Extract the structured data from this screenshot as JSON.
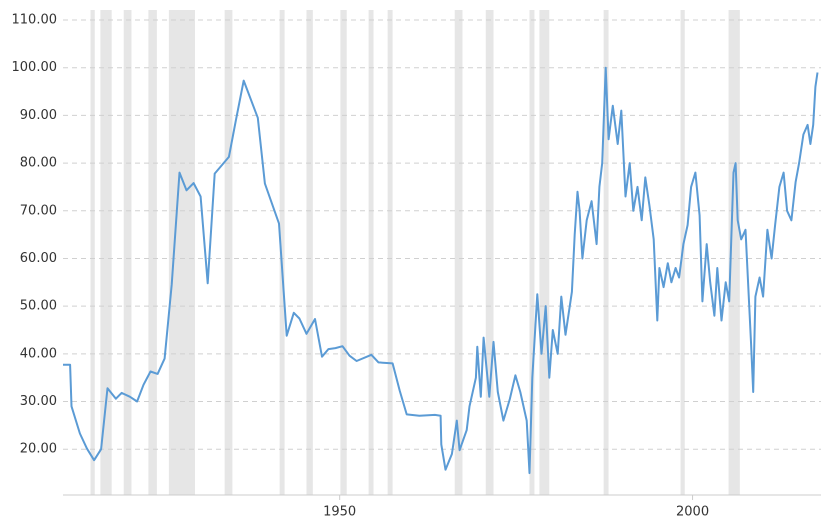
{
  "chart_data": {
    "type": "line",
    "xlim": [
      1910.8,
      2018.2
    ],
    "ylim": [
      10.4,
      110
    ],
    "xticks": [
      1950,
      2000
    ],
    "yticks": [
      {
        "value": 20,
        "label": "20.00"
      },
      {
        "value": 30,
        "label": "30.00"
      },
      {
        "value": 40,
        "label": "40.00"
      },
      {
        "value": 50,
        "label": "50.00"
      },
      {
        "value": 60,
        "label": "60.00"
      },
      {
        "value": 70,
        "label": "70.00"
      },
      {
        "value": 80,
        "label": "80.00"
      },
      {
        "value": 90,
        "label": "90.00"
      },
      {
        "value": 100,
        "label": "100.00"
      },
      {
        "value": 110,
        "label": "110.00"
      }
    ],
    "grid": true,
    "shaded_ranges": [
      [
        1914.7,
        1915.3
      ],
      [
        1916.1,
        1917.7
      ],
      [
        1919.4,
        1920.5
      ],
      [
        1922.9,
        1924.1
      ],
      [
        1925.8,
        1929.5
      ],
      [
        1933.7,
        1934.8
      ],
      [
        1941.5,
        1942.2
      ],
      [
        1945.3,
        1946.2
      ],
      [
        1950.1,
        1951.0
      ],
      [
        1954.1,
        1954.8
      ],
      [
        1956.8,
        1957.5
      ],
      [
        1966.3,
        1967.4
      ],
      [
        1970.7,
        1971.8
      ],
      [
        1976.9,
        1977.6
      ],
      [
        1978.3,
        1979.7
      ],
      [
        1987.4,
        1988.1
      ],
      [
        1998.3,
        1998.9
      ],
      [
        2005.1,
        2006.7
      ]
    ],
    "shade_color": "#e6e6e6",
    "series": [
      {
        "color": "#5b9bd5",
        "x": [
          1910.8,
          1911.8,
          1912.0,
          1913.2,
          1914.2,
          1915.2,
          1916.2,
          1917.1,
          1918.3,
          1919.1,
          1920.3,
          1921.3,
          1922.2,
          1923.2,
          1924.2,
          1925.2,
          1926.2,
          1927.3,
          1928.3,
          1929.3,
          1930.3,
          1931.3,
          1932.3,
          1934.3,
          1935.3,
          1936.4,
          1938.4,
          1939.4,
          1941.4,
          1942.5,
          1943.5,
          1944.3,
          1945.3,
          1946.5,
          1947.5,
          1948.4,
          1949.4,
          1950.4,
          1951.4,
          1952.4,
          1954.5,
          1955.5,
          1957.5,
          1958.5,
          1959.5,
          1961.3,
          1963.5,
          1964.3,
          1964.4,
          1965.0,
          1965.9,
          1966.6,
          1967.0,
          1968.0,
          1968.4,
          1969.3,
          1969.5,
          1970.0,
          1970.4,
          1971.2,
          1971.8,
          1972.4,
          1973.2,
          1974.1,
          1974.9,
          1975.6,
          1976.5,
          1976.9,
          1977.3,
          1978.0,
          1978.6,
          1979.2,
          1979.7,
          1980.2,
          1980.9,
          1981.4,
          1982.0,
          1982.9,
          1983.3,
          1983.7,
          1984.0,
          1984.4,
          1985.0,
          1985.7,
          1986.4,
          1986.8,
          1987.2,
          1987.7,
          1988.1,
          1988.7,
          1989.4,
          1989.9,
          1990.5,
          1991.1,
          1991.6,
          1992.2,
          1992.8,
          1993.3,
          1993.9,
          1994.5,
          1995.0,
          1995.3,
          1995.9,
          1996.5,
          1997.0,
          1997.6,
          1998.1,
          1998.7,
          1999.3,
          1999.8,
          2000.4,
          2001.0,
          2001.4,
          2002.0,
          2002.5,
          2003.1,
          2003.5,
          2004.1,
          2004.7,
          2005.2,
          2005.8,
          2006.1,
          2006.4,
          2006.9,
          2007.5,
          2008.1,
          2008.3,
          2008.6,
          2008.9,
          2009.5,
          2010.0,
          2010.6,
          2011.2,
          2011.7,
          2012.3,
          2012.9,
          2013.4,
          2014.0,
          2014.6,
          2015.1,
          2015.7,
          2016.3,
          2016.7,
          2017.1,
          2017.4,
          2017.7
        ],
        "values": [
          37.7,
          37.7,
          29,
          23.3,
          20.1,
          17.7,
          20.0,
          32.8,
          30.6,
          31.8,
          31,
          30,
          33.5,
          36.3,
          35.8,
          39,
          54.5,
          78,
          74.3,
          75.8,
          73,
          54.8,
          77.8,
          81.3,
          89,
          97.3,
          89.5,
          75.7,
          67.3,
          43.8,
          48.6,
          47.4,
          44.2,
          47.3,
          39.4,
          41,
          41.2,
          41.6,
          39.6,
          38.5,
          39.8,
          38.2,
          38,
          32.3,
          27.3,
          27,
          27.2,
          27,
          21,
          15.7,
          19,
          26,
          19.8,
          24,
          29,
          35,
          41.5,
          31,
          43.4,
          31,
          42.5,
          32,
          26,
          30.5,
          35.5,
          32,
          26,
          15,
          35,
          52.5,
          40,
          50,
          35,
          45,
          40,
          52,
          44,
          53,
          65,
          74,
          70,
          60,
          68,
          72,
          63,
          75,
          80,
          100,
          85,
          92,
          84,
          91,
          73,
          80,
          70,
          75,
          68,
          77,
          71,
          64,
          47,
          58,
          54,
          59,
          55,
          58,
          56,
          63,
          67,
          75,
          78,
          69,
          51,
          63,
          55,
          48,
          58,
          47,
          55,
          51,
          78,
          80,
          68,
          64,
          66,
          48,
          42,
          32,
          52,
          56,
          52,
          66,
          60,
          67,
          75,
          78,
          70,
          68,
          76,
          80,
          86,
          88,
          84,
          88,
          96,
          99
        ]
      }
    ]
  }
}
